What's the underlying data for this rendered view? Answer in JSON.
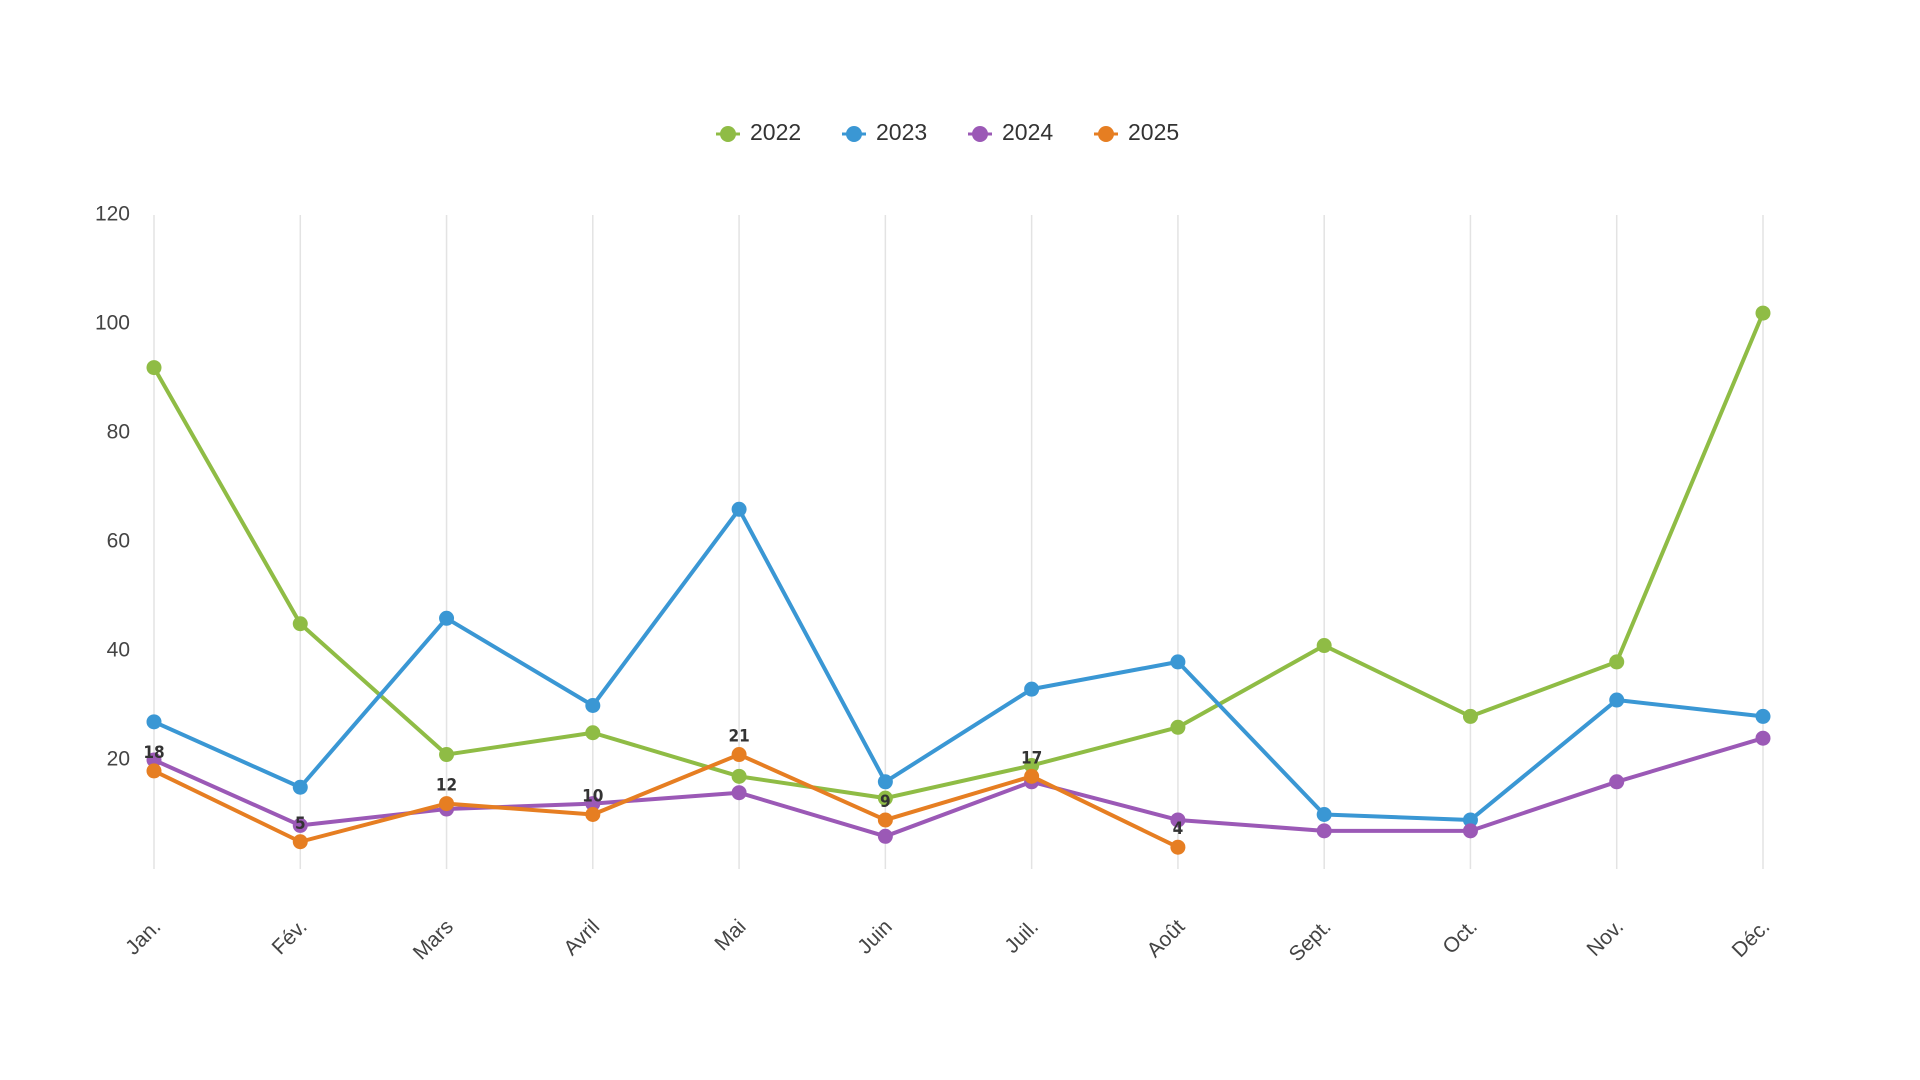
{
  "chart_data": {
    "type": "line",
    "categories": [
      "Jan.",
      "Fév.",
      "Mars",
      "Avril",
      "Mai",
      "Juin",
      "Juil.",
      "Août",
      "Sept.",
      "Oct.",
      "Nov.",
      "Déc."
    ],
    "series": [
      {
        "name": "2022",
        "color": "#8fbc45",
        "values": [
          92,
          45,
          21,
          25,
          17,
          13,
          19,
          26,
          41,
          28,
          38,
          102
        ]
      },
      {
        "name": "2023",
        "color": "#3a97d4",
        "values": [
          27,
          15,
          46,
          30,
          66,
          16,
          33,
          38,
          10,
          9,
          31,
          28
        ]
      },
      {
        "name": "2024",
        "color": "#9b59b6",
        "values": [
          20,
          8,
          11,
          12,
          14,
          6,
          16,
          9,
          7,
          7,
          16,
          24
        ]
      },
      {
        "name": "2025",
        "color": "#e67e22",
        "values": [
          18,
          5,
          12,
          10,
          21,
          9,
          17,
          4,
          null,
          null,
          null,
          null
        ],
        "data_labels": true
      }
    ],
    "ylim": [
      0,
      120
    ],
    "yticks": [
      20,
      40,
      60,
      80,
      100,
      120
    ],
    "grid": true,
    "legend": "top"
  }
}
